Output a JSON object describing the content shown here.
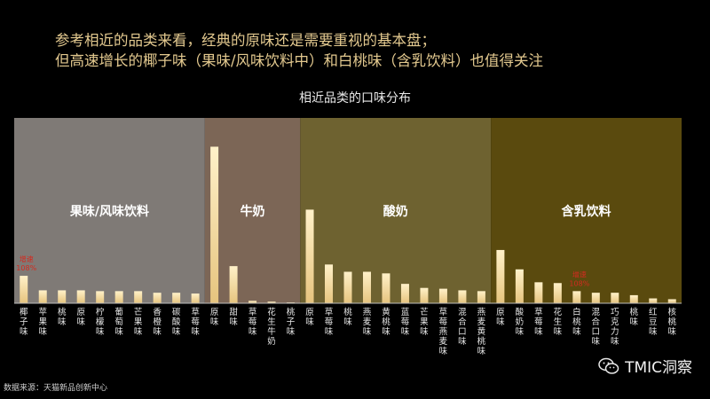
{
  "headline": {
    "line1": "参考相近的品类来看，经典的原味还是需要重视的基本盘；",
    "line2": "但高速增长的椰子味（果味/风味饮料中）和白桃味（含乳饮料）也值得关注"
  },
  "source": "数据来源：天猫新品创新中心",
  "brand": {
    "name": "TMIC洞察",
    "icon": "wechat-icon"
  },
  "chart_data": {
    "type": "bar",
    "title": "相近品类的口味分布",
    "grid": false,
    "legend": "none",
    "ylim": [
      0,
      100
    ],
    "groups": [
      {
        "name": "果味/风味饮料",
        "color": "#7f7a76",
        "categories": [
          "椰子味",
          "苹果味",
          "桃味",
          "原味",
          "柠檬味",
          "葡萄味",
          "芒果味",
          "香橙味",
          "碳酸味",
          "草莓味"
        ],
        "values": [
          17,
          8,
          8,
          8,
          7.5,
          7.5,
          7.5,
          6.5,
          6.5,
          6
        ]
      },
      {
        "name": "牛奶",
        "color": "#7c6656",
        "categories": [
          "原味",
          "甜味",
          "草莓味",
          "花生牛奶",
          "桃子味"
        ],
        "values": [
          97,
          23,
          1.5,
          1,
          0.5
        ]
      },
      {
        "name": "酸奶",
        "color": "#6e6230",
        "categories": [
          "原味",
          "草莓味",
          "桃味",
          "燕麦味",
          "黄桃味",
          "蓝莓味",
          "芒果味",
          "草莓燕麦味",
          "混合口味",
          "燕麦黄桃味"
        ],
        "values": [
          58,
          24,
          19.5,
          19.5,
          18.5,
          12,
          9.5,
          9,
          8,
          7.5
        ]
      },
      {
        "name": "含乳饮料",
        "color": "#5a4a0e",
        "categories": [
          "原味",
          "酸奶味",
          "草莓味",
          "花生味",
          "白桃味",
          "混合口味",
          "巧克力味",
          "桃味",
          "红豆味",
          "核桃味"
        ],
        "values": [
          33,
          21,
          13,
          12.5,
          7.5,
          6.5,
          6.5,
          5,
          3,
          2.5
        ]
      }
    ],
    "annotations": [
      {
        "group": 0,
        "category": "椰子味",
        "label": "增速",
        "value": "108%"
      },
      {
        "group": 3,
        "category": "白桃味",
        "label": "增速",
        "value": "108%"
      }
    ]
  }
}
